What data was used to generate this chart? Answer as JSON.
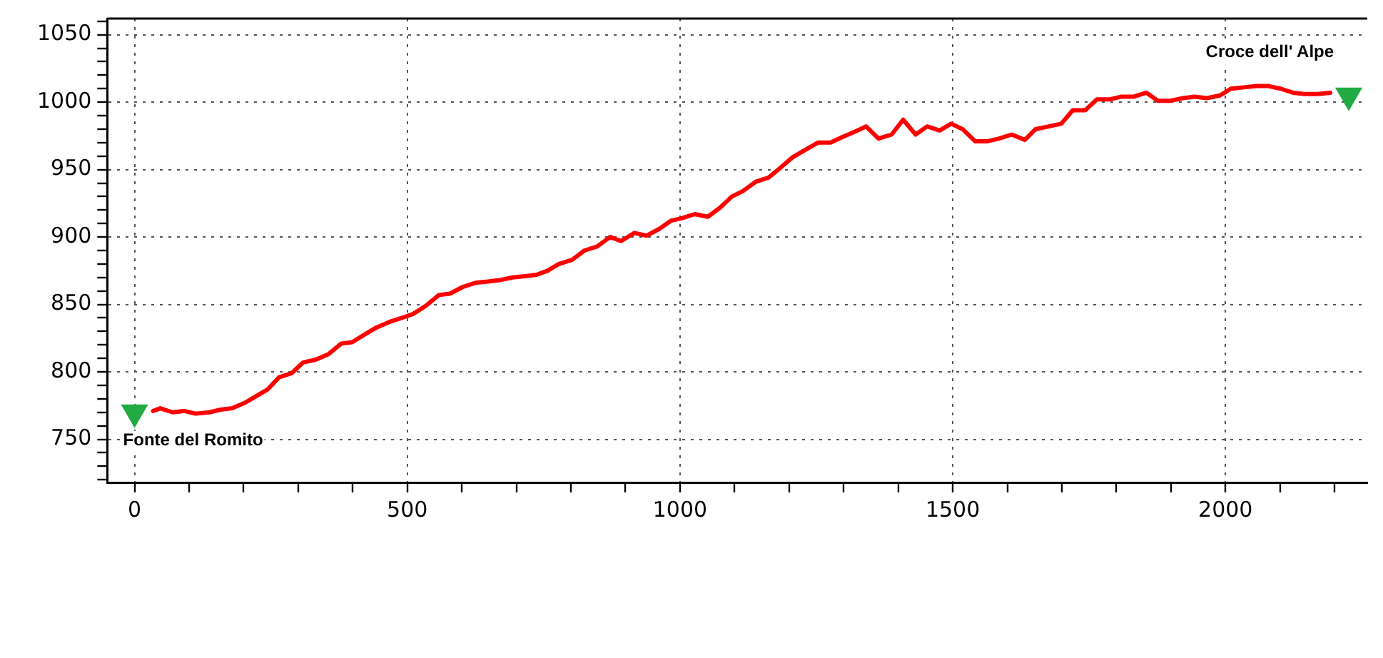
{
  "chart_data": {
    "type": "line",
    "xlim": [
      -50,
      2260
    ],
    "ylim": [
      718,
      1062
    ],
    "xticks": [
      0,
      {
        "value": 100,
        "label": null
      },
      {
        "value": 200,
        "label": null
      },
      {
        "value": 300,
        "label": null
      },
      {
        "value": 400,
        "label": null
      },
      500,
      {
        "value": 600,
        "label": null
      },
      {
        "value": 700,
        "label": null
      },
      {
        "value": 800,
        "label": null
      },
      {
        "value": 900,
        "label": null
      },
      1000,
      {
        "value": 1100,
        "label": null
      },
      {
        "value": 1200,
        "label": null
      },
      {
        "value": 1300,
        "label": null
      },
      {
        "value": 1400,
        "label": null
      },
      1500,
      {
        "value": 1600,
        "label": null
      },
      {
        "value": 1700,
        "label": null
      },
      {
        "value": 1800,
        "label": null
      },
      {
        "value": 1900,
        "label": null
      },
      2000,
      {
        "value": 2100,
        "label": null
      },
      {
        "value": 2200,
        "label": null
      }
    ],
    "yticks": [
      {
        "value": 720,
        "label": null
      },
      {
        "value": 730,
        "label": null
      },
      {
        "value": 740,
        "label": null
      },
      750,
      {
        "value": 760,
        "label": null
      },
      {
        "value": 770,
        "label": null
      },
      {
        "value": 780,
        "label": null
      },
      {
        "value": 790,
        "label": null
      },
      800,
      {
        "value": 810,
        "label": null
      },
      {
        "value": 820,
        "label": null
      },
      {
        "value": 830,
        "label": null
      },
      {
        "value": 840,
        "label": null
      },
      850,
      {
        "value": 860,
        "label": null
      },
      {
        "value": 870,
        "label": null
      },
      {
        "value": 880,
        "label": null
      },
      {
        "value": 890,
        "label": null
      },
      900,
      {
        "value": 910,
        "label": null
      },
      {
        "value": 920,
        "label": null
      },
      {
        "value": 930,
        "label": null
      },
      {
        "value": 940,
        "label": null
      },
      950,
      {
        "value": 960,
        "label": null
      },
      {
        "value": 970,
        "label": null
      },
      {
        "value": 980,
        "label": null
      },
      {
        "value": 990,
        "label": null
      },
      1000,
      {
        "value": 1010,
        "label": null
      },
      {
        "value": 1020,
        "label": null
      },
      {
        "value": 1030,
        "label": null
      },
      {
        "value": 1040,
        "label": null
      },
      1050,
      {
        "value": 1060,
        "label": null
      }
    ],
    "grid": true,
    "legend": false,
    "line_style": "solid",
    "series": [
      {
        "color": "#ff0000",
        "marker": "none",
        "x": [
          34,
          47,
          70,
          91,
          112,
          137,
          158,
          179,
          202,
          223,
          244,
          265,
          288,
          309,
          332,
          355,
          379,
          399,
          423,
          444,
          467,
          490,
          511,
          534,
          558,
          578,
          602,
          625,
          648,
          669,
          693,
          716,
          737,
          757,
          778,
          802,
          825,
          848,
          872,
          892,
          916,
          939,
          962,
          983,
          1004,
          1027,
          1051,
          1074,
          1095,
          1115,
          1139,
          1162,
          1183,
          1206,
          1227,
          1253,
          1276,
          1297,
          1320,
          1341,
          1364,
          1388,
          1409,
          1432,
          1453,
          1476,
          1497,
          1518,
          1541,
          1564,
          1585,
          1608,
          1632,
          1652,
          1676,
          1699,
          1720,
          1743,
          1764,
          1787,
          1808,
          1831,
          1855,
          1876,
          1899,
          1922,
          1943,
          1966,
          1990,
          2010,
          2034,
          2057,
          2078,
          2101,
          2124,
          2145,
          2169,
          2192
        ],
        "values": [
          771,
          773,
          770,
          771,
          769,
          770,
          772,
          773,
          777,
          782,
          787,
          796,
          799,
          807,
          809,
          813,
          821,
          822,
          828,
          833,
          837,
          840,
          843,
          849,
          857,
          858,
          863,
          866,
          867,
          868,
          870,
          871,
          872,
          875,
          880,
          883,
          890,
          893,
          900,
          897,
          903,
          901,
          906,
          912,
          914,
          917,
          915,
          922,
          930,
          934,
          941,
          944,
          951,
          959,
          964,
          970,
          970,
          974,
          978,
          982,
          973,
          976,
          987,
          976,
          982,
          979,
          984,
          980,
          971,
          971,
          973,
          976,
          972,
          980,
          982,
          984,
          994,
          994,
          1002,
          1002,
          1004,
          1004,
          1007,
          1001,
          1001,
          1003,
          1004,
          1003,
          1005,
          1010,
          1011,
          1012,
          1012,
          1010,
          1007,
          1006,
          1006,
          1007
        ]
      },
      {
        "type": "scatter",
        "color": "#22aa44",
        "marker": "triangle",
        "x": [
          0,
          2226
        ],
        "values": [
          770,
          1005
        ]
      }
    ],
    "annotations": [
      {
        "text": "Fonte del Romito",
        "x": 0,
        "y": 770
      },
      {
        "text": "Croce dell' Alpe",
        "x": 2226,
        "y": 1005
      }
    ]
  }
}
